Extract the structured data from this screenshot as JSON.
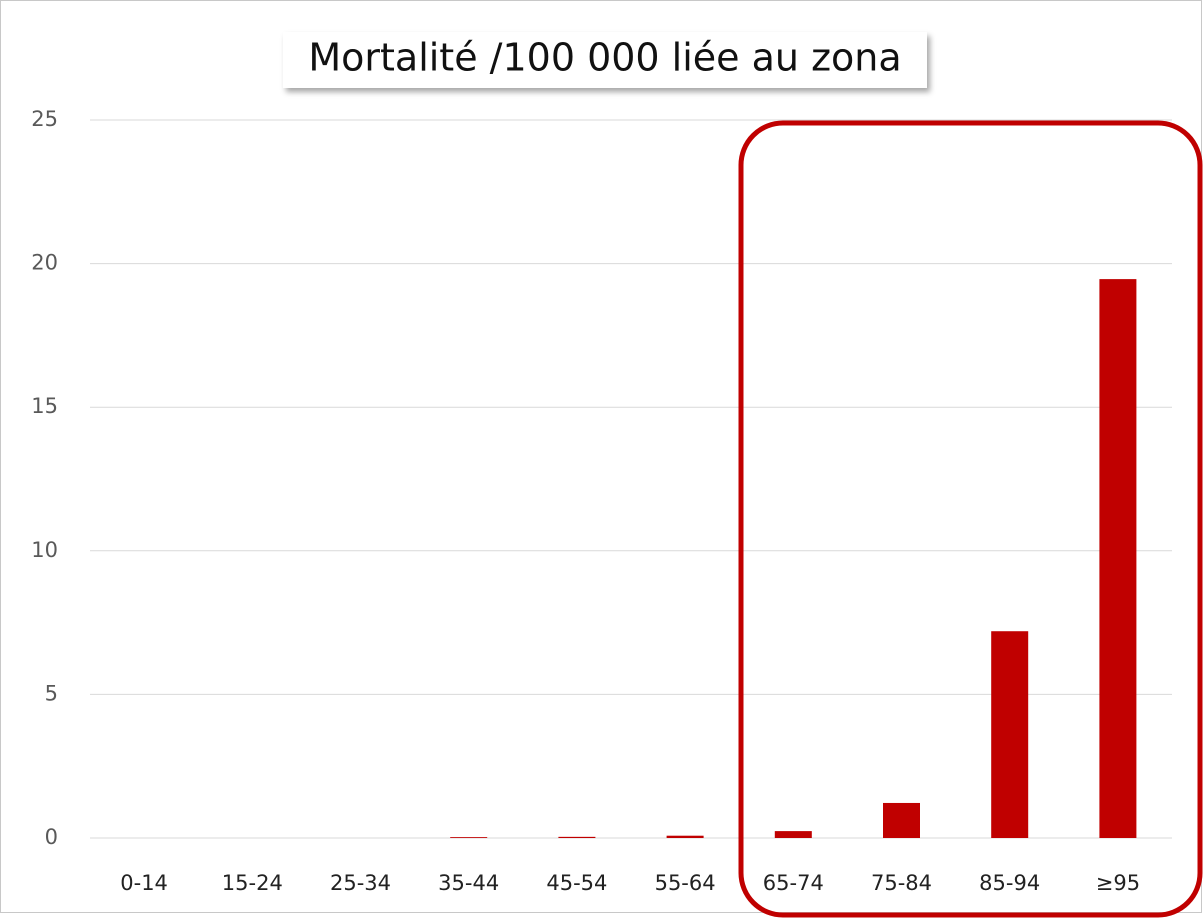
{
  "chart_data": {
    "type": "bar",
    "title": "Mortalité /100 000 liée au zona",
    "categories": [
      "0-14",
      "15-24",
      "25-34",
      "35-44",
      "45-54",
      "55-64",
      "65-74",
      "75-84",
      "85-94",
      "≥95"
    ],
    "values": [
      0,
      0,
      0,
      0.03,
      0.04,
      0.08,
      0.24,
      1.22,
      7.2,
      19.46
    ],
    "color": "#c00000",
    "ylim": [
      0,
      25
    ],
    "yticks": [
      0,
      5,
      10,
      15,
      20,
      25
    ],
    "grid": true
  }
}
